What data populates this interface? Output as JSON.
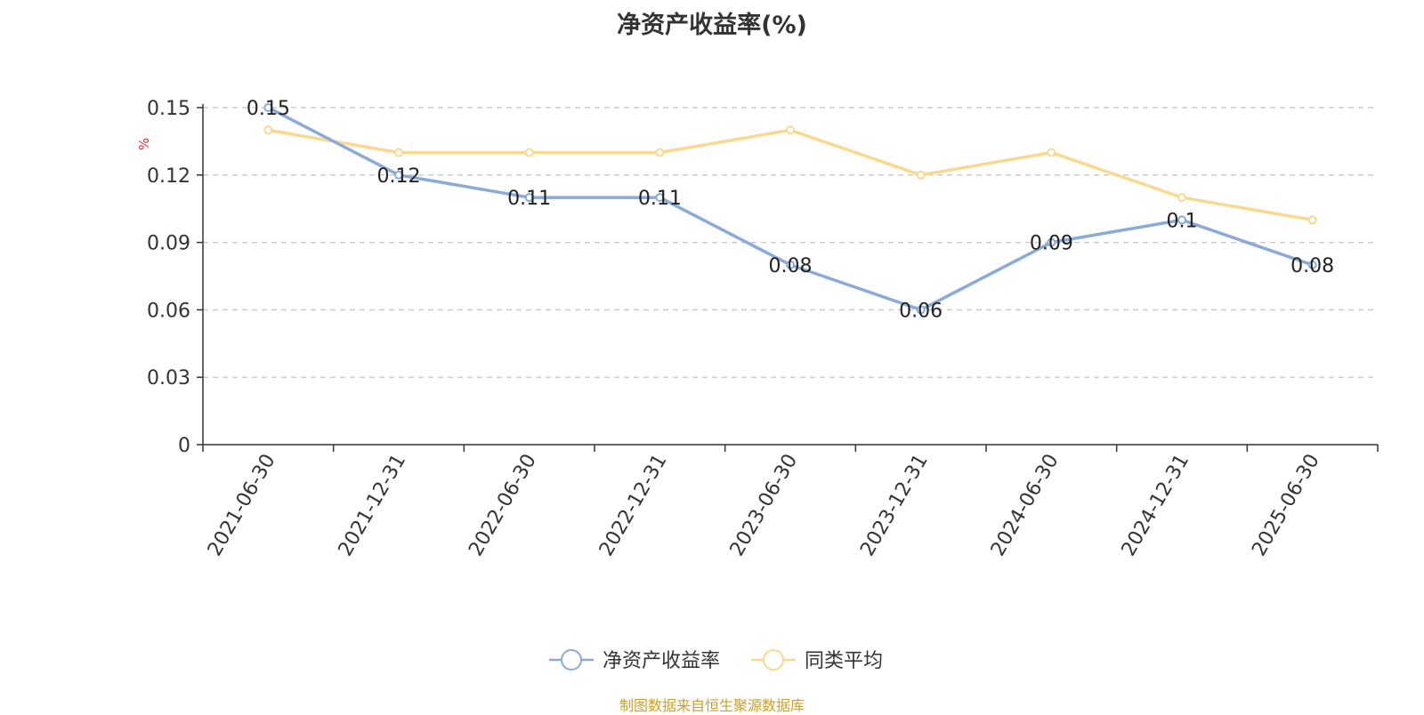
{
  "chart_data": {
    "type": "line",
    "title": "净资产收益率(%)",
    "ylabel": "%",
    "xlabel": "",
    "categories": [
      "2021-06-30",
      "2021-12-31",
      "2022-06-30",
      "2022-12-31",
      "2023-06-30",
      "2023-12-31",
      "2024-06-30",
      "2024-12-31",
      "2025-06-30"
    ],
    "ylim": [
      0,
      0.15
    ],
    "yticks": [
      "0",
      "0.03",
      "0.06",
      "0.09",
      "0.12",
      "0.15"
    ],
    "grid": true,
    "legend_position": "bottom-center",
    "series": [
      {
        "name": "净资产收益率",
        "color": "#8aaad8",
        "values": [
          0.15,
          0.12,
          0.11,
          0.11,
          0.08,
          0.06,
          0.09,
          0.1,
          0.08
        ],
        "labels": [
          "0.15",
          "0.12",
          "0.11",
          "0.11",
          "0.08",
          "0.06",
          "0.09",
          "0.1",
          "0.08"
        ]
      },
      {
        "name": "同类平均",
        "color": "#fad88f",
        "values": [
          0.14,
          0.13,
          0.13,
          0.13,
          0.14,
          0.12,
          0.13,
          0.11,
          0.1
        ]
      }
    ],
    "source": "制图数据来自恒生聚源数据库"
  }
}
